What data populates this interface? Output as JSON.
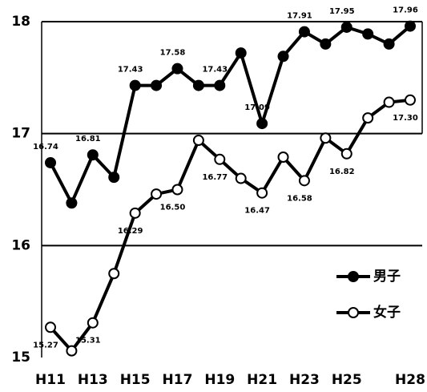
{
  "chart_data": {
    "type": "line",
    "categories": [
      "H11",
      null,
      "H13",
      null,
      "H15",
      null,
      "H17",
      null,
      "H19",
      null,
      "H21",
      null,
      "H23",
      null,
      "H25",
      null,
      null,
      "H28"
    ],
    "series": [
      {
        "name": "男子",
        "color": "#000000",
        "marker": "filled",
        "values": [
          16.74,
          16.38,
          16.81,
          16.61,
          17.43,
          17.43,
          17.58,
          17.43,
          17.43,
          17.72,
          17.09,
          17.69,
          17.91,
          17.8,
          17.95,
          17.89,
          17.8,
          17.96
        ],
        "value_labels": [
          "16.74",
          null,
          "16.81",
          null,
          "17.43",
          null,
          "17.58",
          null,
          "17.43",
          null,
          "17.09",
          null,
          "17.91",
          null,
          "17.95",
          null,
          null,
          "17.96"
        ]
      },
      {
        "name": "女子",
        "color": "#000000",
        "marker": "open",
        "values": [
          15.27,
          15.06,
          15.31,
          15.75,
          16.29,
          16.46,
          16.5,
          16.94,
          16.77,
          16.6,
          16.47,
          16.79,
          16.58,
          16.96,
          16.82,
          17.14,
          17.28,
          17.3
        ],
        "value_labels": [
          "15.27",
          null,
          "15.31",
          null,
          "16.29",
          null,
          "16.50",
          null,
          "16.77",
          null,
          "16.47",
          null,
          "16.58",
          null,
          "16.82",
          null,
          null,
          "17.30"
        ]
      }
    ],
    "ylim": [
      15,
      18
    ],
    "yticks": [
      15,
      16,
      17,
      18
    ],
    "grid": true,
    "legend": "lower right"
  }
}
